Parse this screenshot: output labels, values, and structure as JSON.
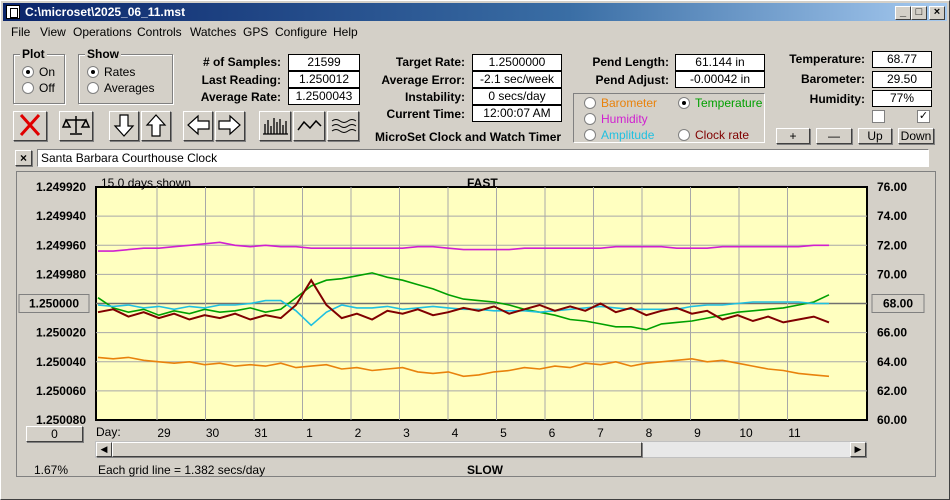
{
  "window": {
    "title": "C:\\microset\\2025_06_11.mst"
  },
  "menu": [
    "File",
    "View",
    "Operations",
    "Controls",
    "Watches",
    "GPS",
    "Configure",
    "Help"
  ],
  "plot_group": {
    "title": "Plot",
    "options": [
      {
        "label": "On",
        "selected": true
      },
      {
        "label": "Off",
        "selected": false
      }
    ]
  },
  "show_group": {
    "title": "Show",
    "options": [
      {
        "label": "Rates",
        "selected": true
      },
      {
        "label": "Averages",
        "selected": false
      }
    ]
  },
  "stats": {
    "samples_label": "# of Samples:",
    "samples": "21599",
    "last_label": "Last Reading:",
    "last": "1.250012",
    "avg_label": "Average Rate:",
    "avg": "1.2500043",
    "target_label": "Target Rate:",
    "target": "1.2500000",
    "avgerr_label": "Average Error:",
    "avgerr": "-2.1 sec/week",
    "instab_label": "Instability:",
    "instab": "0 secs/day",
    "time_label": "Current Time:",
    "time": "12:00:07 AM",
    "pendlen_label": "Pend Length:",
    "pendlen": "61.144 in",
    "pendadj_label": "Pend Adjust:",
    "pendadj": "-0.00042 in",
    "temp_label": "Temperature:",
    "temp": "68.77",
    "baro_label": "Barometer:",
    "baro": "29.50",
    "hum_label": "Humidity:",
    "hum": "77%"
  },
  "app_subtitle": "MicroSet Clock and Watch Timer",
  "sensor_options": [
    {
      "label": "Barometer",
      "color": "#e8820c",
      "selected": false
    },
    {
      "label": "Temperature",
      "color": "#00a000",
      "selected": true
    },
    {
      "label": "Humidity",
      "color": "#d020d0",
      "selected": false
    },
    {
      "label": "Clock rate",
      "color": "#800000",
      "selected": false
    },
    {
      "label": "Amplitude",
      "color": "#20c0e0",
      "selected": false
    }
  ],
  "right_buttons": {
    "plus": "+",
    "minus": "—",
    "up": "Up",
    "down": "Down",
    "check2": "✓"
  },
  "clock_name": "Santa Barbara Courthouse Clock",
  "close_x": "×",
  "chart_header": {
    "days_shown": "15.0 days shown",
    "fast": "FAST",
    "slow": "SLOW",
    "grid_note": "Each grid line = 1.382 secs/day",
    "pct": "1.67%",
    "day_label": "Day:",
    "zero_btn": "0"
  },
  "chart_data": {
    "type": "line",
    "left_ticks": [
      "1.249920",
      "1.249940",
      "1.249960",
      "1.249980",
      "1.250000",
      "1.250020",
      "1.250040",
      "1.250060",
      "1.250080"
    ],
    "right_ticks": [
      "76.00",
      "74.00",
      "72.00",
      "70.00",
      "68.00",
      "66.00",
      "64.00",
      "62.00",
      "60.00"
    ],
    "left_button": "1.250000",
    "right_button": "68.00",
    "x_ticks": [
      "29",
      "30",
      "31",
      "1",
      "2",
      "3",
      "4",
      "5",
      "6",
      "7",
      "8",
      "9",
      "10",
      "11"
    ],
    "series": [
      {
        "name": "Humidity",
        "color": "#d020d0",
        "y": [
          1.249964,
          1.249964,
          1.249963,
          1.249962,
          1.249962,
          1.249961,
          1.24996,
          1.249959,
          1.249958,
          1.24996,
          1.249961,
          1.24996,
          1.249961,
          1.249961,
          1.249962,
          1.249962,
          1.249962,
          1.249962,
          1.249962,
          1.249962,
          1.249962,
          1.249961,
          1.249961,
          1.249962,
          1.249963,
          1.249963,
          1.249963,
          1.249963,
          1.249962,
          1.249962,
          1.249962,
          1.249962,
          1.249962,
          1.249962,
          1.249961,
          1.249961,
          1.249961,
          1.249961,
          1.249962,
          1.249962,
          1.249962,
          1.249961,
          1.249961,
          1.249961,
          1.249961,
          1.249961,
          1.249961,
          1.24996,
          1.24996
        ]
      },
      {
        "name": "Barometer",
        "color": "#e8820c",
        "y": [
          1.250037,
          1.250038,
          1.250037,
          1.250039,
          1.25004,
          1.250041,
          1.25004,
          1.250042,
          1.250041,
          1.250043,
          1.250042,
          1.250043,
          1.250041,
          1.250044,
          1.250043,
          1.250042,
          1.250045,
          1.250044,
          1.250046,
          1.250045,
          1.250044,
          1.250047,
          1.250048,
          1.250047,
          1.25005,
          1.250049,
          1.250047,
          1.250046,
          1.250044,
          1.250045,
          1.250043,
          1.250044,
          1.250041,
          1.250042,
          1.25004,
          1.250043,
          1.250041,
          1.25004,
          1.250039,
          1.250038,
          1.25004,
          1.250039,
          1.250041,
          1.250043,
          1.250045,
          1.250046,
          1.250048,
          1.250049,
          1.25005
        ]
      },
      {
        "name": "Temperature",
        "color": "#00a000",
        "y": [
          1.249996,
          1.250003,
          1.250006,
          1.250004,
          1.250008,
          1.250005,
          1.250007,
          1.250004,
          1.250006,
          1.250005,
          1.250003,
          1.250006,
          1.250004,
          1.249996,
          1.249988,
          1.249984,
          1.249983,
          1.249981,
          1.249979,
          1.249982,
          1.249984,
          1.249987,
          1.24999,
          1.249994,
          1.249997,
          1.249998,
          1.249999,
          1.250001,
          1.250004,
          1.250006,
          1.250008,
          1.250011,
          1.250012,
          1.250014,
          1.250016,
          1.250016,
          1.250018,
          1.250014,
          1.250013,
          1.250012,
          1.25001,
          1.250008,
          1.250006,
          1.250005,
          1.250004,
          1.250003,
          1.250001,
          1.249999,
          1.249994
        ]
      },
      {
        "name": "Amplitude",
        "color": "#20c0e0",
        "y": [
          1.250001,
          1.250002,
          1.250001,
          1.250003,
          1.250002,
          1.250004,
          1.250002,
          1.250003,
          1.250001,
          1.250001,
          1.25,
          1.249998,
          1.249998,
          1.250005,
          1.250015,
          1.250006,
          1.250001,
          1.250003,
          1.250003,
          1.250002,
          1.250004,
          1.250003,
          1.250002,
          1.250003,
          1.250004,
          1.250004,
          1.250005,
          1.250005,
          1.250005,
          1.250006,
          1.250005,
          1.250004,
          1.250003,
          1.250002,
          1.250003,
          1.250004,
          1.250004,
          1.250004,
          1.250004,
          1.250002,
          1.250001,
          1.250001,
          1.25,
          1.249999,
          1.249999,
          1.249999,
          1.249999,
          1.25,
          1.25
        ]
      },
      {
        "name": "Clock rate",
        "color": "#800000",
        "y": [
          1.250006,
          1.250004,
          1.250009,
          1.250006,
          1.25001,
          1.250007,
          1.250011,
          1.250008,
          1.25001,
          1.250007,
          1.250011,
          1.250008,
          1.25001,
          1.250001,
          1.249984,
          1.250001,
          1.25001,
          1.250007,
          1.250011,
          1.250005,
          1.250007,
          1.250004,
          1.250008,
          1.250006,
          1.250003,
          1.250005,
          1.250002,
          1.250007,
          1.250004,
          1.250001,
          1.250005,
          1.250002,
          1.250005,
          1.25,
          1.250006,
          1.250003,
          1.250008,
          1.250005,
          1.250003,
          1.250007,
          1.250005,
          1.250011,
          1.250008,
          1.250012,
          1.250009,
          1.250013,
          1.250011,
          1.250009,
          1.250013
        ]
      }
    ]
  }
}
